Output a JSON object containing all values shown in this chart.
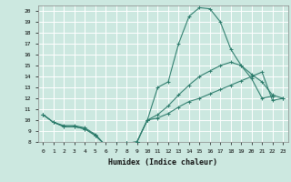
{
  "xlabel": "Humidex (Indice chaleur)",
  "bg_color": "#cce8e0",
  "grid_color": "#ffffff",
  "line_color": "#2a7a6a",
  "xlim": [
    -0.5,
    23.5
  ],
  "ylim": [
    8,
    20.5
  ],
  "xticks": [
    0,
    1,
    2,
    3,
    4,
    5,
    6,
    7,
    8,
    9,
    10,
    11,
    12,
    13,
    14,
    15,
    16,
    17,
    18,
    19,
    20,
    21,
    22,
    23
  ],
  "yticks": [
    8,
    9,
    10,
    11,
    12,
    13,
    14,
    15,
    16,
    17,
    18,
    19,
    20
  ],
  "line1_x": [
    0,
    1,
    2,
    3,
    4,
    5,
    6,
    7,
    8,
    9,
    10,
    11,
    12,
    13,
    14,
    15,
    16,
    17,
    18,
    19,
    20,
    21,
    22
  ],
  "line1_y": [
    10.5,
    9.8,
    9.5,
    9.5,
    9.3,
    8.7,
    7.7,
    7.8,
    7.9,
    8.0,
    10.0,
    13.0,
    13.5,
    17.0,
    19.5,
    20.3,
    20.2,
    19.0,
    16.5,
    15.0,
    13.8,
    12.0,
    12.2
  ],
  "line2_x": [
    0,
    1,
    2,
    3,
    4,
    5,
    6,
    7,
    8,
    9,
    10,
    11,
    12,
    13,
    14,
    15,
    16,
    17,
    18,
    19,
    20,
    21,
    22,
    23
  ],
  "line2_y": [
    10.5,
    9.8,
    9.4,
    9.4,
    9.2,
    8.6,
    7.7,
    7.8,
    7.9,
    8.0,
    10.0,
    10.5,
    11.3,
    12.3,
    13.2,
    14.0,
    14.5,
    15.0,
    15.3,
    15.0,
    14.2,
    13.5,
    12.3,
    12.0
  ],
  "line3_x": [
    0,
    1,
    2,
    3,
    4,
    5,
    6,
    7,
    8,
    9,
    10,
    11,
    12,
    13,
    14,
    15,
    16,
    17,
    18,
    19,
    20,
    21,
    22,
    23
  ],
  "line3_y": [
    10.5,
    9.8,
    9.4,
    9.4,
    9.2,
    8.6,
    7.7,
    7.8,
    7.9,
    8.0,
    10.0,
    10.2,
    10.6,
    11.2,
    11.7,
    12.0,
    12.4,
    12.8,
    13.2,
    13.6,
    14.0,
    14.4,
    11.8,
    12.0
  ]
}
